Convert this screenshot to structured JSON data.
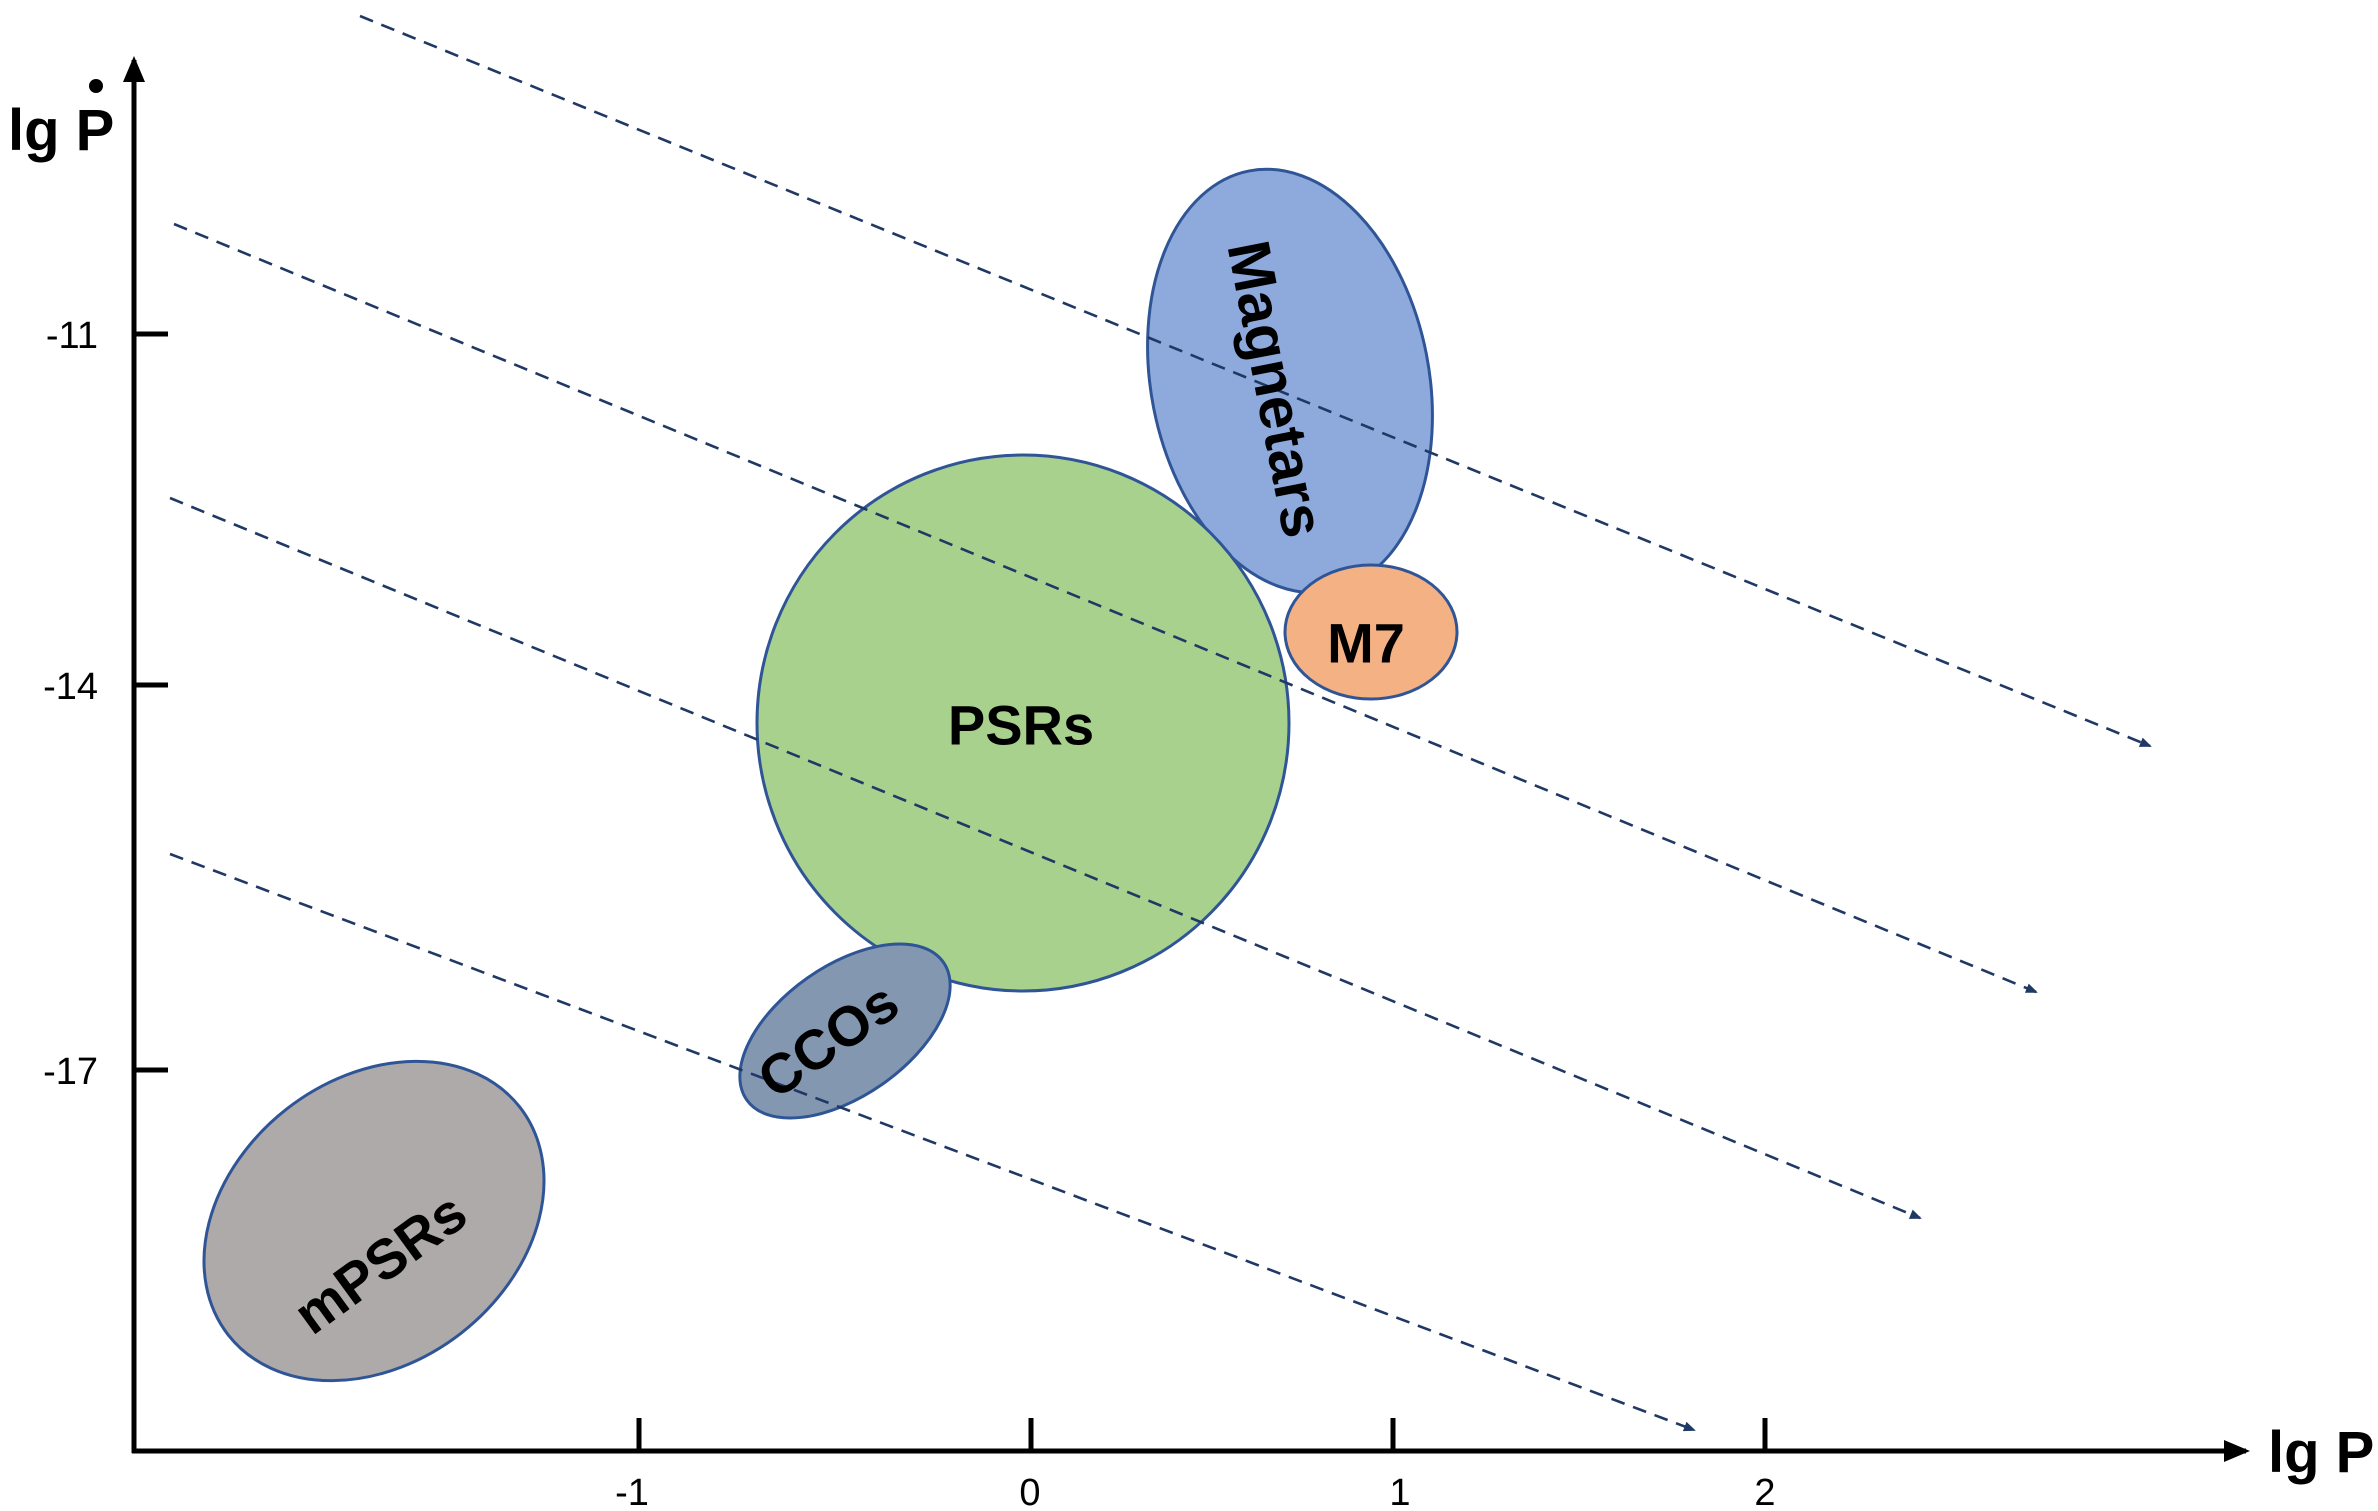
{
  "axes": {
    "x_title": "lg P",
    "y_title": "lg P",
    "x_ticks": [
      {
        "value": -1,
        "label": "-1"
      },
      {
        "value": 0,
        "label": "0"
      },
      {
        "value": 1,
        "label": "1"
      },
      {
        "value": 2,
        "label": "2"
      }
    ],
    "y_ticks": [
      {
        "value": -11,
        "label": "-11"
      },
      {
        "value": -14,
        "label": "-14"
      },
      {
        "value": -17,
        "label": "-17"
      }
    ]
  },
  "regions": [
    {
      "id": "magnetars",
      "label": "Magnetars",
      "fill": "#8eaadc",
      "stroke": "#2f5597"
    },
    {
      "id": "m7",
      "label": "M7",
      "fill": "#f4b183",
      "stroke": "#2f5597"
    },
    {
      "id": "psrs",
      "label": "PSRs",
      "fill": "#a9d18e",
      "stroke": "#2f5597"
    },
    {
      "id": "ccos",
      "label": "CCOs",
      "fill": "#8497b0",
      "stroke": "#2f5597"
    },
    {
      "id": "mpsrs",
      "label": "mPSRs",
      "fill": "#aeaaaa",
      "stroke": "#2f5597"
    }
  ],
  "trajectories": {
    "count": 4,
    "color": "#1f3864",
    "style": "dashed-arrow"
  }
}
